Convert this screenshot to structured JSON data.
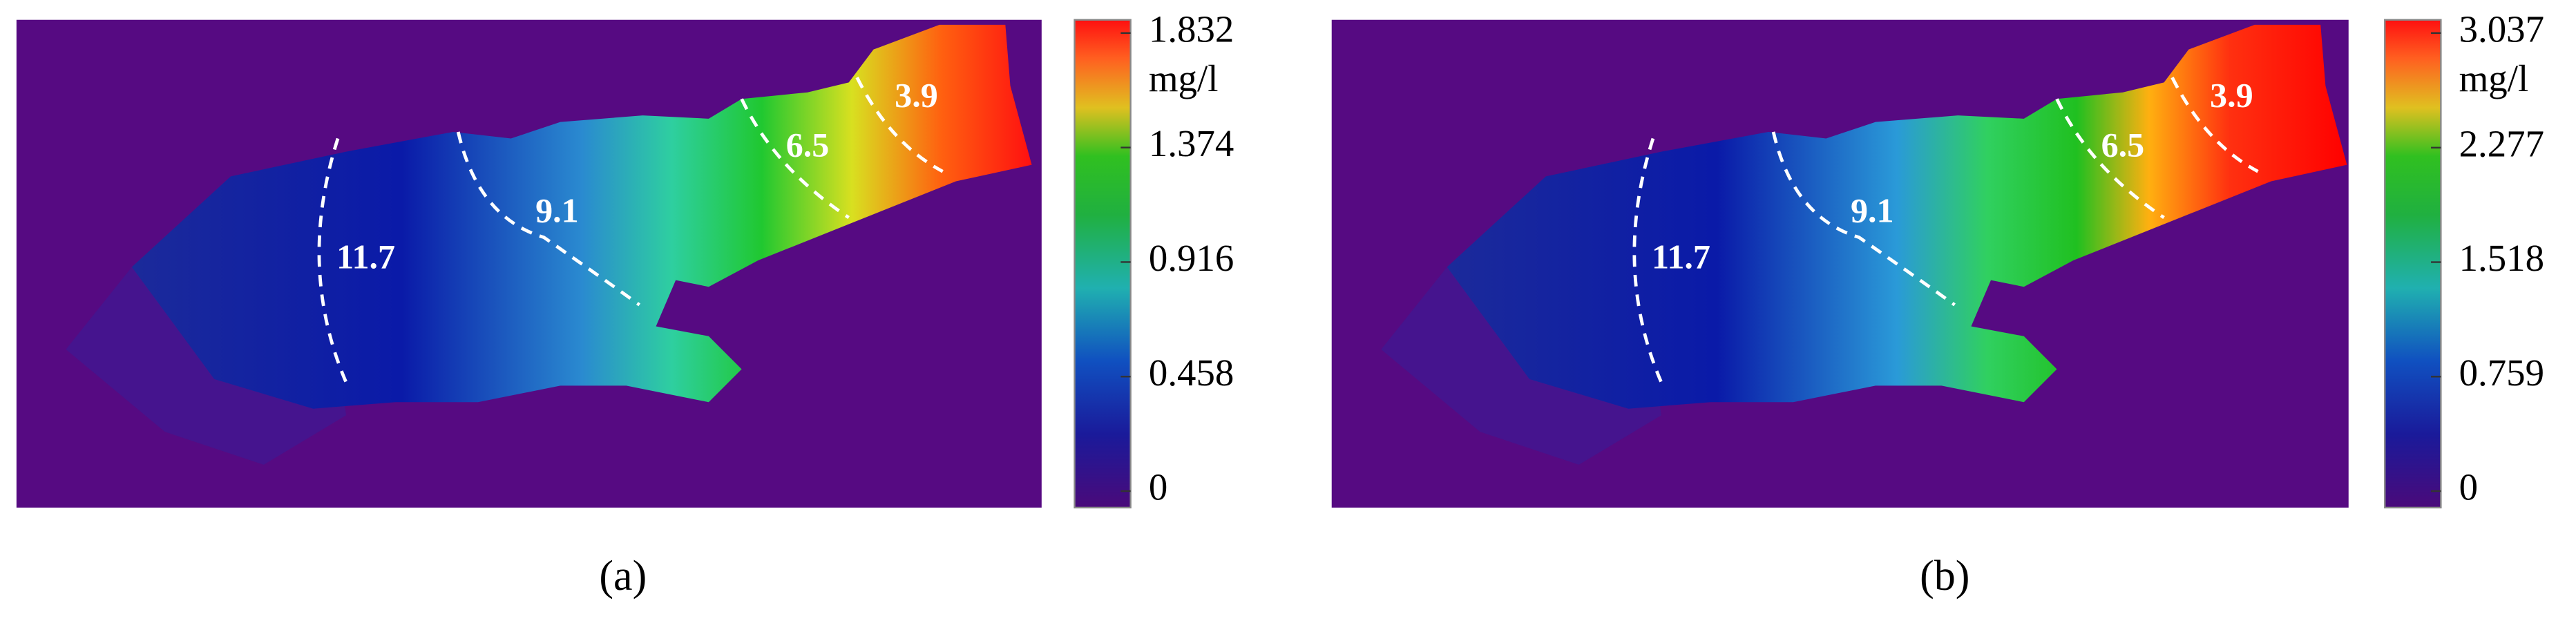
{
  "panels": [
    {
      "label": "(a)",
      "colorbar": {
        "unit": "mg/l",
        "lim": [
          0,
          1.832
        ],
        "ticks": [
          0,
          0.458,
          0.916,
          1.374,
          1.832
        ]
      },
      "contours": [
        11.7,
        9.1,
        6.5,
        3.9
      ]
    },
    {
      "label": "(b)",
      "colorbar": {
        "unit": "mg/l",
        "lim": [
          0,
          3.037
        ],
        "ticks": [
          0,
          0.759,
          1.518,
          2.277,
          3.037
        ]
      },
      "contours": [
        11.7,
        9.1,
        6.5,
        3.9
      ]
    }
  ]
}
